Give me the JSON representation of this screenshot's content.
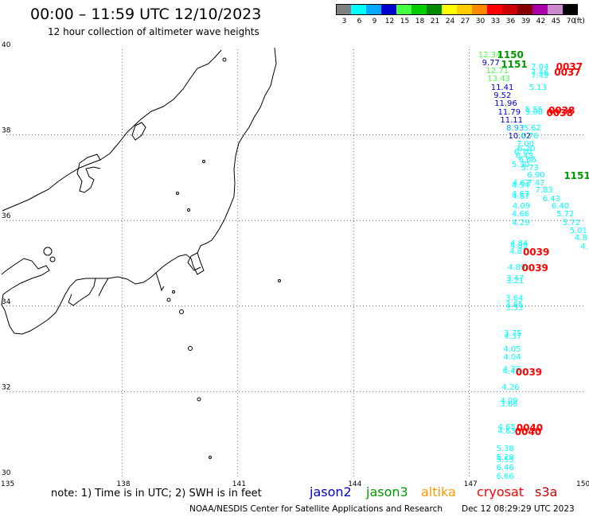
{
  "header": {
    "title": "00:00 – 11:59 UTC 12/10/2023",
    "subtitle": "12 hour collection of altimeter wave heights"
  },
  "colorbar": {
    "colors": [
      "#808080",
      "#00ffff",
      "#00aaff",
      "#0000cc",
      "#44ff44",
      "#00cc00",
      "#008800",
      "#ffff00",
      "#ffcc00",
      "#ff8800",
      "#ff0000",
      "#cc0000",
      "#880000",
      "#aa00aa",
      "#cc88cc",
      "#000000"
    ],
    "labels": [
      "3",
      "6",
      "9",
      "12",
      "15",
      "18",
      "21",
      "24",
      "27",
      "30",
      "33",
      "36",
      "39",
      "42",
      "45",
      "70",
      "(ft)"
    ]
  },
  "axes": {
    "lat_labels": [
      "40",
      "38",
      "36",
      "34",
      "32",
      "30"
    ],
    "lon_labels": [
      "135",
      "138",
      "141",
      "144",
      "147",
      "150"
    ]
  },
  "satellites": {
    "jason2": {
      "label": "jason2",
      "color": "#0000cc"
    },
    "jason3": {
      "label": "jason3",
      "color": "#009900"
    },
    "altika": {
      "label": "altika",
      "color": "#ff9900"
    },
    "cryosat": {
      "label": "cryosat",
      "color": "#ff0000"
    },
    "s3a": {
      "label": "s3a",
      "color": "#cc0000"
    }
  },
  "observations": [
    {
      "v": "12.34",
      "lon": 147.23,
      "lat": 39.95,
      "c": "#44ff44"
    },
    {
      "v": "9.77",
      "lon": 147.33,
      "lat": 39.76,
      "c": "#0000cc"
    },
    {
      "v": "12.71",
      "lon": 147.43,
      "lat": 39.57,
      "c": "#44ff44"
    },
    {
      "v": "13.43",
      "lon": 147.47,
      "lat": 39.38,
      "c": "#44ff44"
    },
    {
      "v": "11.41",
      "lon": 147.56,
      "lat": 39.18,
      "c": "#0000cc"
    },
    {
      "v": "9.52",
      "lon": 147.63,
      "lat": 39.0,
      "c": "#0000cc"
    },
    {
      "v": "11.96",
      "lon": 147.65,
      "lat": 38.81,
      "c": "#0000cc"
    },
    {
      "v": "11.79",
      "lon": 147.74,
      "lat": 38.61,
      "c": "#0000cc"
    },
    {
      "v": "11.11",
      "lon": 147.8,
      "lat": 38.42,
      "c": "#0000cc"
    },
    {
      "v": "8.93",
      "lon": 147.96,
      "lat": 38.24,
      "c": "#00aaff"
    },
    {
      "v": "10.02",
      "lon": 148.01,
      "lat": 38.04,
      "c": "#0000cc"
    },
    {
      "v": "7.04",
      "lon": 148.6,
      "lat": 39.67,
      "c": "#00ffff"
    },
    {
      "v": "7.46",
      "lon": 148.6,
      "lat": 39.53,
      "c": "#00ffff"
    },
    {
      "v": "7.49",
      "lon": 148.6,
      "lat": 39.47,
      "c": "#00ffff"
    },
    {
      "v": "5.13",
      "lon": 148.55,
      "lat": 39.18,
      "c": "#00ffff"
    },
    {
      "v": "5.55",
      "lon": 148.45,
      "lat": 38.67,
      "c": "#00ffff"
    },
    {
      "v": "5.00",
      "lon": 148.45,
      "lat": 38.6,
      "c": "#00ffff"
    },
    {
      "v": "5.62",
      "lon": 148.4,
      "lat": 38.24,
      "c": "#00ffff"
    },
    {
      "v": "6.76",
      "lon": 148.33,
      "lat": 38.04,
      "c": "#00ffff"
    },
    {
      "v": "7.00",
      "lon": 148.22,
      "lat": 37.87,
      "c": "#00ffff"
    },
    {
      "v": "6.20",
      "lon": 148.25,
      "lat": 37.76,
      "c": "#00ffff"
    },
    {
      "v": "6.70",
      "lon": 148.16,
      "lat": 37.67,
      "c": "#00ffff"
    },
    {
      "v": "6.43",
      "lon": 148.2,
      "lat": 37.58,
      "c": "#00ffff"
    },
    {
      "v": "6.66",
      "lon": 148.28,
      "lat": 37.49,
      "c": "#00ffff"
    },
    {
      "v": "5.73",
      "lon": 148.34,
      "lat": 37.31,
      "c": "#00ffff"
    },
    {
      "v": "5.30",
      "lon": 148.1,
      "lat": 37.38,
      "c": "#00ffff"
    },
    {
      "v": "6.90",
      "lon": 148.5,
      "lat": 37.14,
      "c": "#00ffff"
    },
    {
      "v": "4.67",
      "lon": 148.12,
      "lat": 36.96,
      "c": "#00ffff"
    },
    {
      "v": "4.54",
      "lon": 148.1,
      "lat": 36.89,
      "c": "#00ffff"
    },
    {
      "v": "7.47",
      "lon": 148.5,
      "lat": 36.96,
      "c": "#00ffff"
    },
    {
      "v": "7.83",
      "lon": 148.71,
      "lat": 36.78,
      "c": "#00ffff"
    },
    {
      "v": "4.87",
      "lon": 148.11,
      "lat": 36.63,
      "c": "#00ffff"
    },
    {
      "v": "4.67",
      "lon": 148.1,
      "lat": 36.7,
      "c": "#00ffff"
    },
    {
      "v": "6.43",
      "lon": 148.9,
      "lat": 36.58,
      "c": "#00ffff"
    },
    {
      "v": "4.09",
      "lon": 148.12,
      "lat": 36.42,
      "c": "#00ffff"
    },
    {
      "v": "6.40",
      "lon": 149.13,
      "lat": 36.41,
      "c": "#00ffff"
    },
    {
      "v": "4.66",
      "lon": 148.1,
      "lat": 36.22,
      "c": "#00ffff"
    },
    {
      "v": "5.72",
      "lon": 149.26,
      "lat": 36.22,
      "c": "#00ffff"
    },
    {
      "v": "4.29",
      "lon": 148.11,
      "lat": 36.02,
      "c": "#00ffff"
    },
    {
      "v": "5.72",
      "lon": 149.42,
      "lat": 36.03,
      "c": "#00ffff"
    },
    {
      "v": "5.01",
      "lon": 149.6,
      "lat": 35.84,
      "c": "#00ffff"
    },
    {
      "v": "4.8",
      "lon": 149.73,
      "lat": 35.66,
      "c": "#00ffff"
    },
    {
      "v": "4.",
      "lon": 149.88,
      "lat": 35.47,
      "c": "#00ffff"
    },
    {
      "v": "4.84",
      "lon": 148.06,
      "lat": 35.54,
      "c": "#00ffff"
    },
    {
      "v": "4.80",
      "lon": 148.06,
      "lat": 35.48,
      "c": "#00ffff"
    },
    {
      "v": "4.81",
      "lon": 148.04,
      "lat": 35.36,
      "c": "#00ffff"
    },
    {
      "v": "4.89",
      "lon": 148.0,
      "lat": 34.99,
      "c": "#00ffff"
    },
    {
      "v": "3.47",
      "lon": 147.96,
      "lat": 34.73,
      "c": "#00ffff"
    },
    {
      "v": "3.21",
      "lon": 147.96,
      "lat": 34.66,
      "c": "#00ffff"
    },
    {
      "v": "3.64",
      "lon": 147.94,
      "lat": 34.26,
      "c": "#00ffff"
    },
    {
      "v": "3.65",
      "lon": 147.94,
      "lat": 34.1,
      "c": "#00ffff"
    },
    {
      "v": "3.53",
      "lon": 147.94,
      "lat": 34.04,
      "c": "#00ffff"
    },
    {
      "v": "3.75",
      "lon": 147.9,
      "lat": 33.44,
      "c": "#00ffff"
    },
    {
      "v": "4.37",
      "lon": 147.9,
      "lat": 33.37,
      "c": "#00ffff"
    },
    {
      "v": "4.05",
      "lon": 147.88,
      "lat": 33.07,
      "c": "#00ffff"
    },
    {
      "v": "4.04",
      "lon": 147.88,
      "lat": 32.89,
      "c": "#00ffff"
    },
    {
      "v": "4.32",
      "lon": 147.87,
      "lat": 32.6,
      "c": "#00ffff"
    },
    {
      "v": "4.47",
      "lon": 147.87,
      "lat": 32.54,
      "c": "#00ffff"
    },
    {
      "v": "4.26",
      "lon": 147.84,
      "lat": 32.18,
      "c": "#00ffff"
    },
    {
      "v": "4.09",
      "lon": 147.8,
      "lat": 31.86,
      "c": "#00ffff"
    },
    {
      "v": "3.66",
      "lon": 147.8,
      "lat": 31.79,
      "c": "#00ffff"
    },
    {
      "v": "4.65",
      "lon": 147.74,
      "lat": 31.25,
      "c": "#00ffff"
    },
    {
      "v": "4.63",
      "lon": 147.74,
      "lat": 31.16,
      "c": "#00ffff"
    },
    {
      "v": "5.38",
      "lon": 147.7,
      "lat": 30.75,
      "c": "#00ffff"
    },
    {
      "v": "5.29",
      "lon": 147.7,
      "lat": 30.54,
      "c": "#00ffff"
    },
    {
      "v": "5.55",
      "lon": 147.7,
      "lat": 30.48,
      "c": "#00ffff"
    },
    {
      "v": "6.46",
      "lon": 147.7,
      "lat": 30.3,
      "c": "#00ffff"
    },
    {
      "v": "6.66",
      "lon": 147.7,
      "lat": 30.1,
      "c": "#00ffff"
    }
  ],
  "pass_labels": [
    {
      "v": "1150",
      "lon": 147.72,
      "lat": 39.96,
      "c": "#009900"
    },
    {
      "v": "1151",
      "lon": 147.82,
      "lat": 39.74,
      "c": "#009900"
    },
    {
      "v": "0037",
      "lon": 149.25,
      "lat": 39.69,
      "c": "#ff0000"
    },
    {
      "v": "0037",
      "lon": 149.2,
      "lat": 39.55,
      "c": "#ff0000"
    },
    {
      "v": "0038",
      "lon": 149.05,
      "lat": 38.67,
      "c": "#ff0000"
    },
    {
      "v": "0038",
      "lon": 149.0,
      "lat": 38.6,
      "c": "#ff0000"
    },
    {
      "v": "1151",
      "lon": 149.45,
      "lat": 37.14,
      "c": "#009900"
    },
    {
      "v": "0039",
      "lon": 148.39,
      "lat": 35.36,
      "c": "#ff0000"
    },
    {
      "v": "0039",
      "lon": 148.36,
      "lat": 34.99,
      "c": "#ff0000"
    },
    {
      "v": "0039",
      "lon": 148.2,
      "lat": 32.55,
      "c": "#ff0000"
    },
    {
      "v": "0040",
      "lon": 148.22,
      "lat": 31.25,
      "c": "#ff0000"
    },
    {
      "v": "0040",
      "lon": 148.18,
      "lat": 31.16,
      "c": "#ff0000"
    }
  ],
  "footer": {
    "note": "note: 1) Time is in UTC; 2) SWH is in feet",
    "credit": "NOAA/NESDIS Center for Satellite Applications and Research",
    "timestamp": "Dec 12 08:29:29 UTC 2023"
  }
}
